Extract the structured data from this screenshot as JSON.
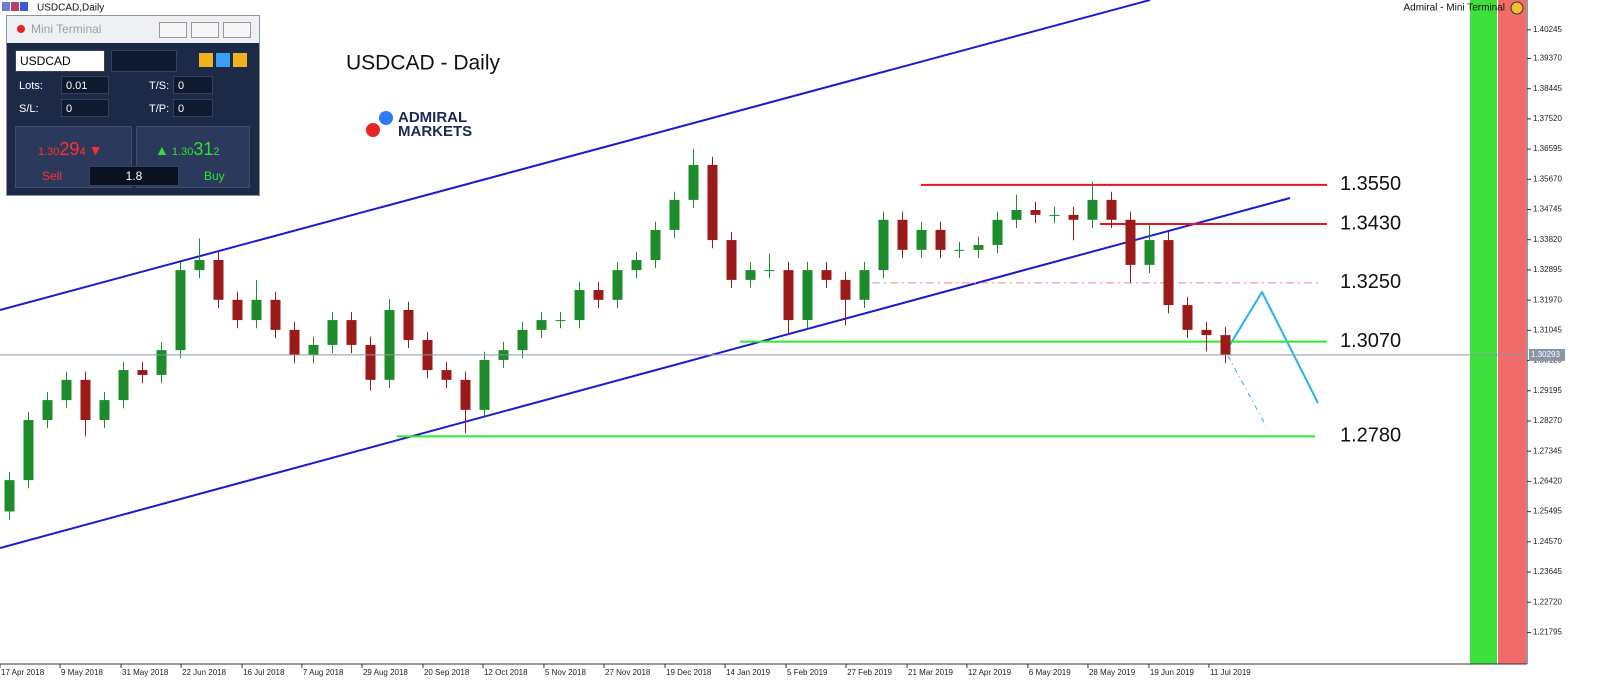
{
  "window": {
    "title": "USDCAD,Daily",
    "right_title": "Admiral - Mini Terminal"
  },
  "mini_terminal": {
    "title": "Mini Terminal",
    "symbol": "USDCAD",
    "lots_label": "Lots:",
    "lots": "0.01",
    "ts_label": "T/S:",
    "ts": "0",
    "sl_label": "S/L:",
    "sl": "0",
    "tp_label": "T/P:",
    "tp": "0",
    "sell": {
      "prefix": "1.30",
      "big": "29",
      "small": "4",
      "label": "Sell"
    },
    "spread": "1.8",
    "buy": {
      "prefix": "1.30",
      "big": "31",
      "small": "2",
      "label": "Buy"
    }
  },
  "logo": {
    "line1": "ADMIRAL",
    "line2": "MARKETS"
  },
  "chart_data": {
    "type": "candlestick",
    "title": "USDCAD - Daily",
    "up_color": "#1e8c2a",
    "down_color": "#9b1b1b",
    "categories": [
      null,
      null,
      null,
      null,
      null,
      null,
      null,
      null,
      null,
      null,
      null,
      null,
      null,
      null,
      null,
      null,
      null,
      null,
      null,
      null,
      null,
      null,
      null,
      null,
      null,
      null,
      null,
      null,
      null,
      null,
      null,
      null,
      null,
      null,
      null,
      null,
      null,
      null,
      null,
      null,
      null,
      null,
      null,
      null,
      null,
      null,
      null,
      null,
      null,
      null,
      null,
      null,
      null,
      null,
      null,
      null,
      null,
      null,
      null,
      null,
      null,
      null,
      null,
      null,
      null
    ],
    "open": [
      1.255,
      1.2646,
      1.283,
      1.2891,
      1.2953,
      1.283,
      1.2891,
      1.2983,
      1.2968,
      1.3044,
      1.3289,
      1.332,
      1.3198,
      1.3136,
      1.3198,
      1.3106,
      1.3029,
      1.306,
      1.3136,
      1.306,
      1.2953,
      1.3167,
      1.3075,
      1.2983,
      1.2953,
      1.2861,
      1.3014,
      1.3044,
      1.3106,
      1.3136,
      1.3136,
      1.3228,
      1.3198,
      1.3289,
      1.332,
      1.3412,
      1.3504,
      1.3611,
      1.3381,
      1.3259,
      1.3289,
      1.3289,
      1.3136,
      1.3289,
      1.3259,
      1.3198,
      1.3289,
      1.3443,
      1.3351,
      1.3412,
      1.3351,
      1.3351,
      1.3366,
      1.3443,
      1.3473,
      1.3458,
      1.3458,
      1.3443,
      1.3504,
      1.3443,
      1.3305,
      1.3381,
      1.3182,
      1.3106,
      1.309
    ],
    "high": [
      1.2671,
      1.2855,
      1.2916,
      1.2978,
      1.2978,
      1.2916,
      1.3008,
      1.3008,
      1.3069,
      1.3314,
      1.3386,
      1.3345,
      1.3223,
      1.3259,
      1.3223,
      1.3131,
      1.3085,
      1.3161,
      1.3161,
      1.3085,
      1.32,
      1.3192,
      1.31,
      1.3008,
      1.2978,
      1.3039,
      1.3069,
      1.3131,
      1.3161,
      1.3161,
      1.3253,
      1.3253,
      1.3314,
      1.3345,
      1.3437,
      1.3529,
      1.366,
      1.3636,
      1.3406,
      1.3314,
      1.334,
      1.3314,
      1.3314,
      1.3314,
      1.3284,
      1.3314,
      1.3468,
      1.3468,
      1.3437,
      1.3437,
      1.3376,
      1.3391,
      1.3468,
      1.352,
      1.3498,
      1.3483,
      1.3483,
      1.356,
      1.3529,
      1.3468,
      1.343,
      1.3406,
      1.3207,
      1.3131,
      1.3115
    ],
    "low": [
      1.2525,
      1.2621,
      1.2805,
      1.2866,
      1.278,
      1.2805,
      1.2866,
      1.2943,
      1.2943,
      1.3019,
      1.3264,
      1.3173,
      1.3111,
      1.3111,
      1.3081,
      1.3004,
      1.3004,
      1.3035,
      1.3035,
      1.292,
      1.2928,
      1.305,
      1.2958,
      1.2928,
      1.279,
      1.2836,
      1.2989,
      1.3019,
      1.3081,
      1.3111,
      1.3111,
      1.3173,
      1.3173,
      1.3264,
      1.3295,
      1.3387,
      1.3479,
      1.3356,
      1.3234,
      1.3234,
      1.3264,
      1.309,
      1.3111,
      1.3234,
      1.312,
      1.3173,
      1.3264,
      1.3326,
      1.3326,
      1.3326,
      1.3326,
      1.3326,
      1.3341,
      1.3418,
      1.3433,
      1.3433,
      1.338,
      1.3418,
      1.3418,
      1.325,
      1.328,
      1.3157,
      1.3081,
      1.304,
      1.3004
    ],
    "close": [
      1.2646,
      1.283,
      1.2891,
      1.2953,
      1.283,
      1.2891,
      1.2983,
      1.2968,
      1.3044,
      1.3289,
      1.332,
      1.3198,
      1.3136,
      1.3198,
      1.3106,
      1.3029,
      1.306,
      1.3136,
      1.306,
      1.2953,
      1.3167,
      1.3075,
      1.2983,
      1.2953,
      1.2861,
      1.3014,
      1.3044,
      1.3106,
      1.3136,
      1.3136,
      1.3228,
      1.3198,
      1.3289,
      1.332,
      1.3412,
      1.3504,
      1.3611,
      1.3381,
      1.3259,
      1.3289,
      1.3289,
      1.3136,
      1.3289,
      1.3259,
      1.3198,
      1.3289,
      1.3443,
      1.3351,
      1.3412,
      1.3351,
      1.3351,
      1.3366,
      1.3443,
      1.3473,
      1.3458,
      1.3458,
      1.3443,
      1.3504,
      1.3443,
      1.3305,
      1.3381,
      1.3182,
      1.3106,
      1.309,
      1.3029
    ],
    "ylim": [
      1.2083,
      1.4116
    ],
    "yticks": [
      1.40245,
      {
        "value": 1.3937,
        "label": "1.39370"
      },
      1.38445,
      {
        "value": 1.3752,
        "label": "1.37520"
      },
      1.36595,
      {
        "value": 1.3567,
        "label": "1.35670"
      },
      1.34745,
      {
        "value": 1.3382,
        "label": "1.33820"
      },
      1.32895,
      {
        "value": 1.3197,
        "label": "1.31970"
      },
      1.31045,
      {
        "value": 1.3012,
        "label": "1.30120"
      },
      1.29195,
      {
        "value": 1.2827,
        "label": "1.28270"
      },
      1.27345,
      {
        "value": 1.2642,
        "label": "1.26420"
      },
      1.25495,
      {
        "value": 1.2457,
        "label": "1.24570"
      },
      1.23645,
      {
        "value": 1.2272,
        "label": "1.22720"
      },
      1.21795
    ],
    "xticks": [
      {
        "value": 0,
        "label": "17 Apr 2018"
      },
      {
        "value": 3.16,
        "label": "9 May 2018"
      },
      {
        "value": 6.37,
        "label": "31 May 2018"
      },
      {
        "value": 9.53,
        "label": "22 Jun 2018"
      },
      {
        "value": 12.74,
        "label": "16 Jul 2018"
      },
      {
        "value": 15.89,
        "label": "7 Aug 2018"
      },
      {
        "value": 19.05,
        "label": "29 Aug 2018"
      },
      {
        "value": 22.26,
        "label": "20 Sep 2018"
      },
      {
        "value": 25.42,
        "label": "12 Oct 2018"
      },
      {
        "value": 28.63,
        "label": "5 Nov 2018"
      },
      {
        "value": 31.79,
        "label": "27 Nov 2018"
      },
      {
        "value": 35.0,
        "label": "19 Dec 2018"
      },
      {
        "value": 38.16,
        "label": "14 Jan 2019"
      },
      {
        "value": 41.37,
        "label": "5 Feb 2019"
      },
      {
        "value": 44.53,
        "label": "27 Feb 2019"
      },
      {
        "value": 47.74,
        "label": "21 Mar 2019"
      },
      {
        "value": 50.89,
        "label": "12 Apr 2019"
      },
      {
        "value": 54.1,
        "label": "6 May 2019"
      },
      {
        "value": 57.26,
        "label": "28 May 2019"
      },
      {
        "value": 60.47,
        "label": "19 Jun 2019"
      },
      {
        "value": 63.63,
        "label": "11 Jul 2019"
      }
    ],
    "current_price": 1.30293,
    "levels": [
      {
        "value": 1.355,
        "label": "1.3550",
        "color": "#e8141e",
        "style": "solid"
      },
      {
        "value": 1.343,
        "label": "1.3430",
        "color": "#e8141e",
        "style": "solid"
      },
      {
        "value": 1.325,
        "label": "1.3250",
        "color": "#f08a8a",
        "style": "dashdot"
      },
      {
        "value": 1.307,
        "label": "1.3070",
        "color": "#2ee82e",
        "style": "solid"
      },
      {
        "value": 1.278,
        "label": "1.2780",
        "color": "#2ee82e",
        "style": "solid"
      }
    ]
  }
}
